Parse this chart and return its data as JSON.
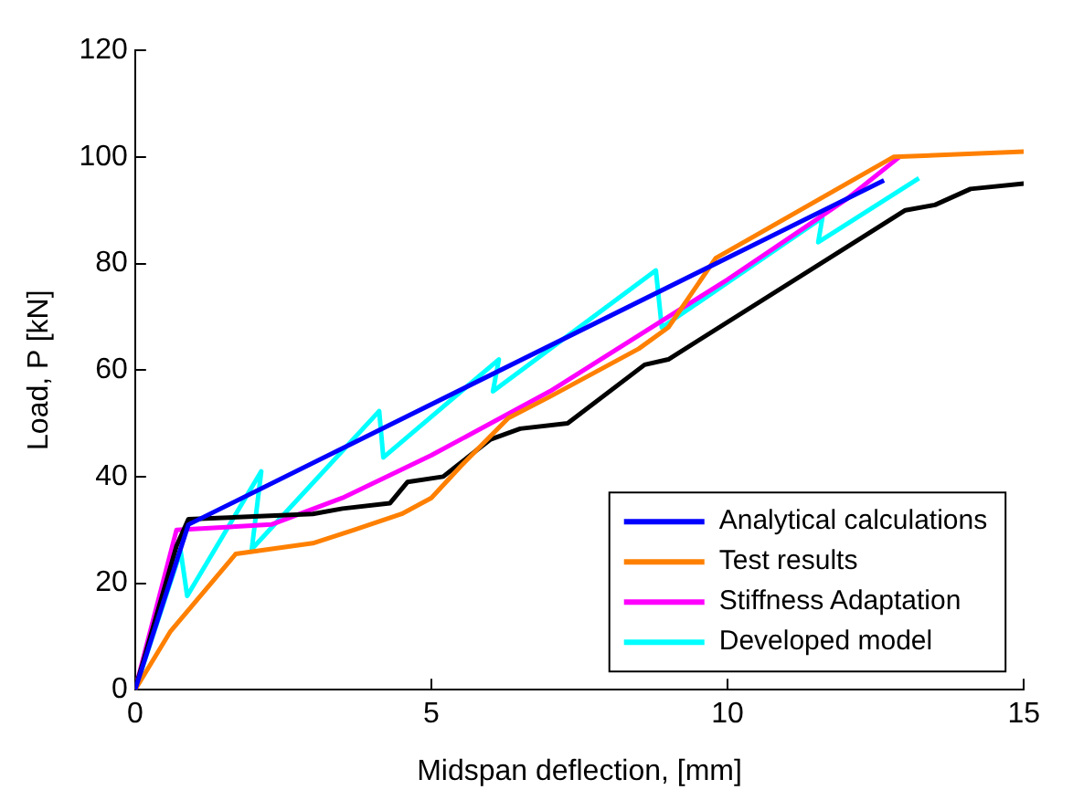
{
  "chart_data": {
    "type": "line",
    "xlabel": "Midspan deflection, [mm]",
    "ylabel": "Load, P [kN]",
    "xlim": [
      0,
      15
    ],
    "xticks": [
      0,
      5,
      10,
      15
    ],
    "ylim": [
      0,
      120
    ],
    "yticks": [
      0,
      20,
      40,
      60,
      80,
      100,
      120
    ],
    "grid": false,
    "legend": "bottom right",
    "marker": "none",
    "line_style": "solid",
    "series": [
      {
        "name": "Analytical calculations",
        "color": "#0000ff",
        "x": [
          0,
          0.9,
          12.64
        ],
        "values": [
          0,
          31,
          95.6
        ]
      },
      {
        "name": "Test results",
        "color": "#ff8000",
        "x": [
          0,
          0.6,
          1.7,
          3,
          3.7,
          4.5,
          5,
          5.5,
          6.3,
          7,
          8.5,
          9,
          9.8,
          12.8,
          15
        ],
        "values": [
          0,
          11,
          25.5,
          27.5,
          30,
          33,
          36,
          42,
          51,
          55,
          64,
          68,
          81,
          100,
          101
        ]
      },
      {
        "color": "#000000",
        "x": [
          0,
          0.7,
          0.9,
          3,
          3.5,
          4.3,
          4.6,
          5.2,
          6,
          6.5,
          7.3,
          8.6,
          9,
          13,
          13.5,
          14.1,
          15
        ],
        "values": [
          0,
          27,
          32,
          33,
          34,
          35,
          39,
          40,
          47,
          49,
          50,
          61,
          62,
          90,
          91,
          94,
          95
        ]
      },
      {
        "name": "Stiffness Adaptation",
        "color": "#ff00ff",
        "x": [
          0,
          0.7,
          2.3,
          3.5,
          5,
          7,
          9,
          10,
          12,
          12.9
        ],
        "values": [
          0,
          30,
          31,
          36,
          44,
          56,
          70,
          77,
          92,
          100
        ]
      },
      {
        "name": "Developed model",
        "color": "#00ffff",
        "x": [
          0,
          0.77,
          0.88,
          2.13,
          1.97,
          4.12,
          4.19,
          6.14,
          6.04,
          8.79,
          8.89,
          11.6,
          11.53,
          13.23
        ],
        "values": [
          0,
          26,
          17.6,
          41,
          26.4,
          52.3,
          43.6,
          62,
          56,
          78.7,
          68,
          88.6,
          84,
          96
        ]
      }
    ]
  }
}
